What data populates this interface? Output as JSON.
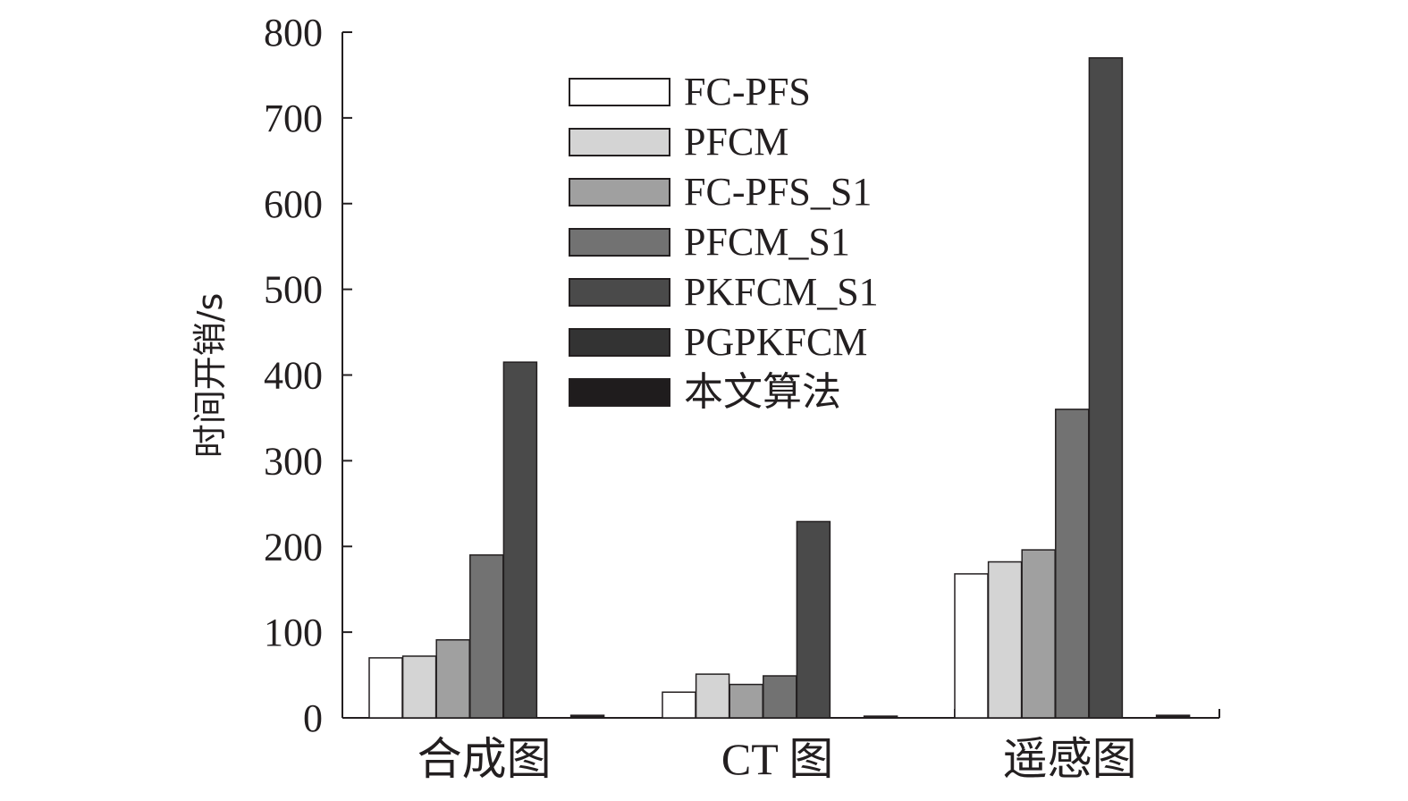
{
  "chart_data": {
    "type": "bar",
    "title": "",
    "xlabel": "",
    "ylabel": "时间开销/s",
    "ylim": [
      0,
      800
    ],
    "yticks": [
      0,
      100,
      200,
      300,
      400,
      500,
      600,
      700,
      800
    ],
    "categories": [
      "合成图",
      "CT 图",
      "遥感图"
    ],
    "legend_position": "top-center",
    "series": [
      {
        "name": "FC-PFS",
        "color": "#ffffff",
        "values": [
          70,
          30,
          168
        ]
      },
      {
        "name": "PFCM",
        "color": "#d4d4d4",
        "values": [
          72,
          51,
          182
        ]
      },
      {
        "name": "FC-PFS_S1",
        "color": "#a0a0a0",
        "values": [
          91,
          39,
          196
        ]
      },
      {
        "name": "PFCM_S1",
        "color": "#727272",
        "values": [
          190,
          49,
          360
        ]
      },
      {
        "name": "PKFCM_S1",
        "color": "#4a4a4a",
        "values": [
          415,
          229,
          770
        ]
      },
      {
        "name": "PGPKFCM",
        "color": "#333333",
        "values": [
          0,
          0,
          0
        ]
      },
      {
        "name": "本文算法",
        "color": "#1f1c1d",
        "values": [
          3,
          2,
          3
        ]
      }
    ]
  }
}
